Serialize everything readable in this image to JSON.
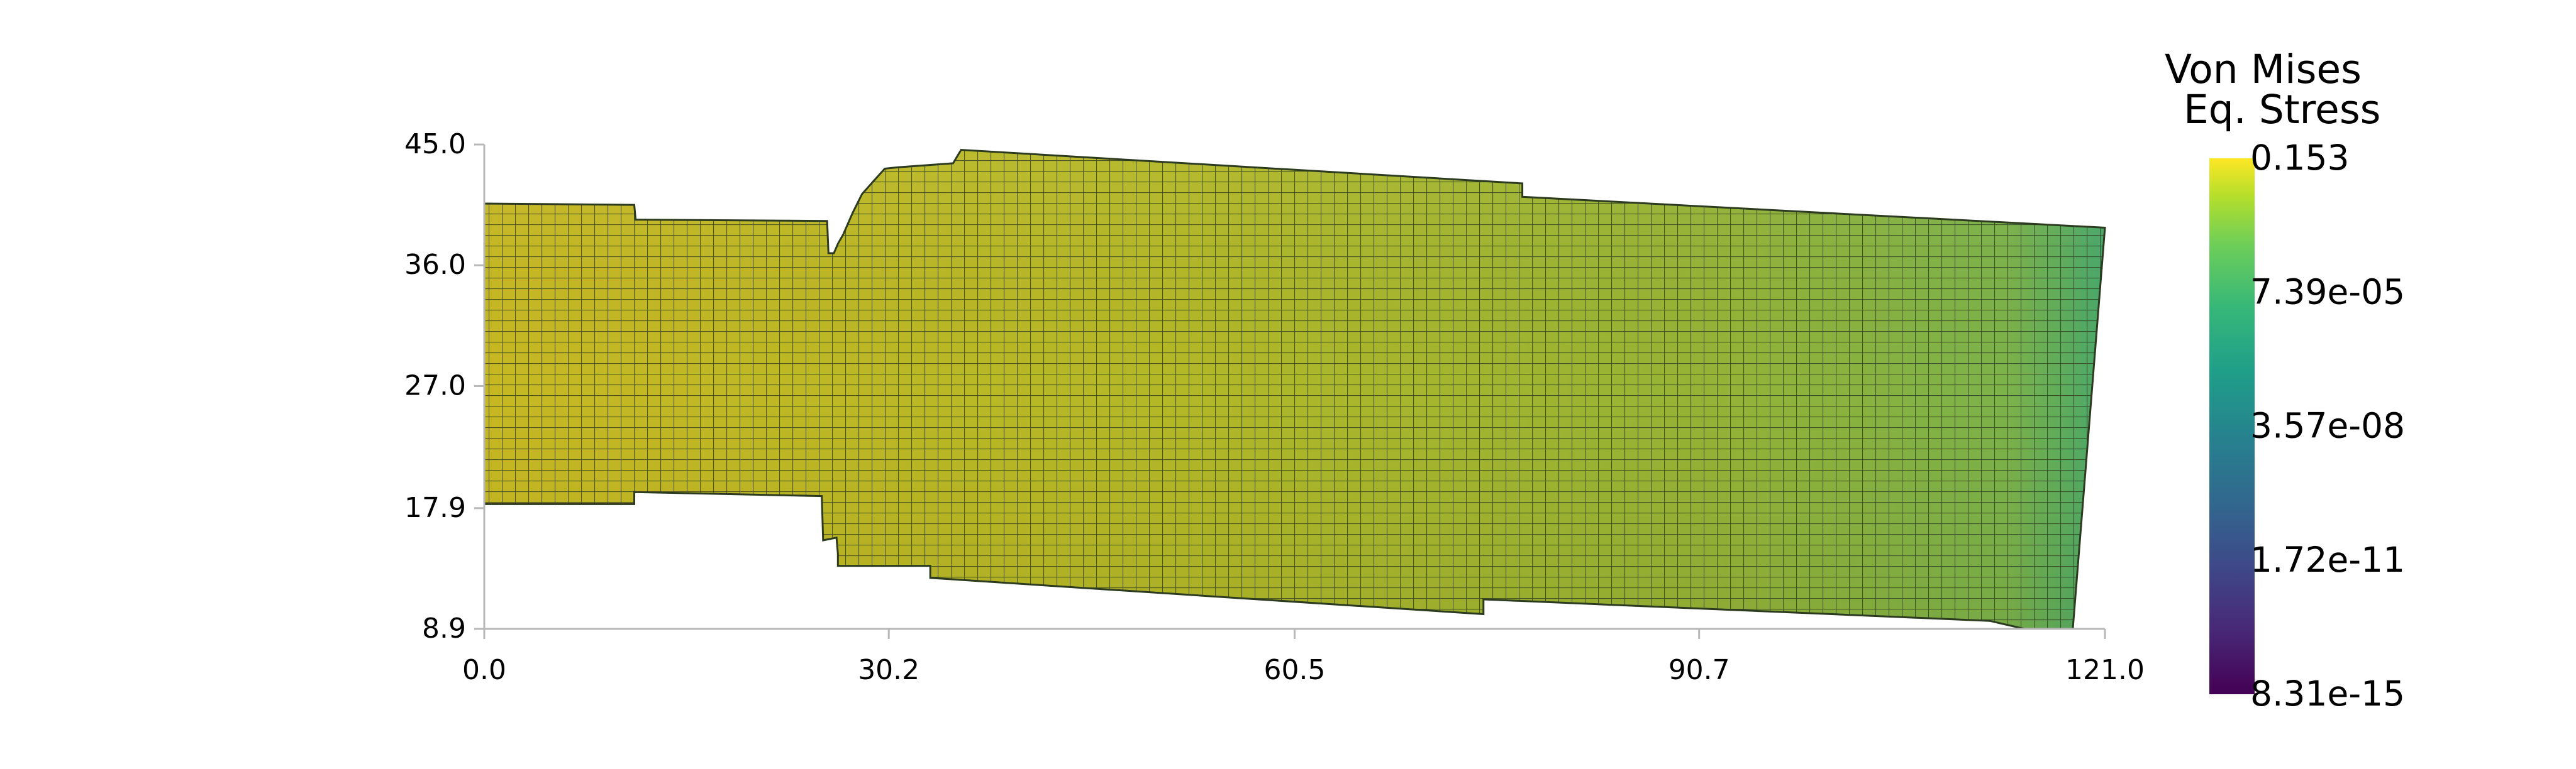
{
  "chart_data": {
    "type": "heatmap",
    "x_ticks": [
      "0.0",
      "30.2",
      "60.5",
      "90.7",
      "121.0"
    ],
    "y_ticks": [
      "45.0",
      "36.0",
      "27.0",
      "17.9",
      "8.9"
    ],
    "xlim": [
      0.0,
      121.0
    ],
    "ylim": [
      8.9,
      45.0
    ],
    "legend": {
      "title_line1": "Von Mises",
      "title_line2": "Eq. Stress",
      "labels": [
        "0.153",
        "7.39e-05",
        "3.57e-08",
        "1.72e-11",
        "8.31e-15"
      ],
      "colormap": "viridis",
      "scale": "log",
      "range": [
        8.31e-15,
        0.153
      ],
      "placement": "right"
    },
    "mesh": {
      "outline": [
        [
          0.0,
          40.6
        ],
        [
          11.2,
          40.5
        ],
        [
          11.3,
          39.4
        ],
        [
          25.6,
          39.3
        ],
        [
          25.7,
          36.9
        ],
        [
          26.1,
          36.9
        ],
        [
          26.4,
          37.6
        ],
        [
          26.8,
          38.3
        ],
        [
          27.5,
          39.9
        ],
        [
          28.2,
          41.3
        ],
        [
          29.0,
          42.2
        ],
        [
          29.9,
          43.2
        ],
        [
          30.9,
          43.3
        ],
        [
          35.0,
          43.6
        ],
        [
          35.6,
          44.6
        ],
        [
          77.5,
          42.1
        ],
        [
          77.5,
          41.1
        ],
        [
          121.0,
          38.8
        ],
        [
          118.6,
          8.9
        ],
        [
          115.0,
          8.9
        ],
        [
          112.4,
          9.5
        ],
        [
          74.6,
          11.1
        ],
        [
          74.6,
          10.0
        ],
        [
          33.3,
          12.7
        ],
        [
          33.3,
          13.6
        ],
        [
          26.4,
          13.6
        ],
        [
          26.4,
          14.5
        ],
        [
          26.3,
          15.7
        ],
        [
          25.3,
          15.5
        ],
        [
          25.2,
          18.8
        ],
        [
          11.2,
          19.1
        ],
        [
          11.2,
          18.2
        ],
        [
          0.0,
          18.2
        ]
      ],
      "field_colors": {
        "low_left": "#c7b823",
        "mid": "#9fb42e",
        "right_edge": "#55b062",
        "mesh_line": "#2c3a1f"
      }
    }
  }
}
